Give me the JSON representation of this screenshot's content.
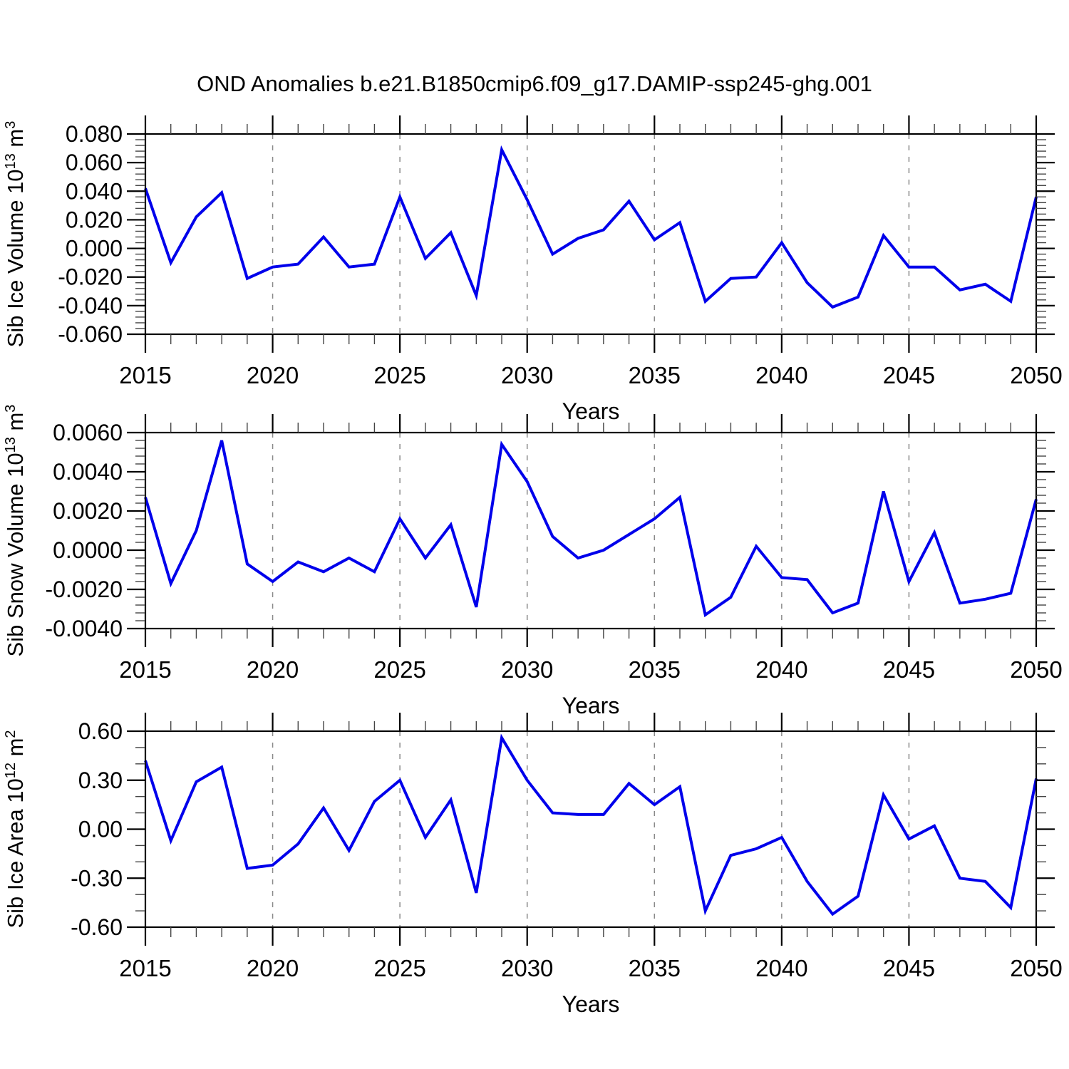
{
  "title": "OND Anomalies b.e21.B1850cmip6.f09_g17.DAMIP-ssp245-ghg.001",
  "colors": {
    "line": "#0000EB",
    "axis": "#000000",
    "grid": "#8a8a8a",
    "minor_tick": "#444444",
    "background": "#ffffff"
  },
  "x_axis": {
    "label": "Years",
    "years": [
      2015,
      2016,
      2017,
      2018,
      2019,
      2020,
      2021,
      2022,
      2023,
      2024,
      2025,
      2026,
      2027,
      2028,
      2029,
      2030,
      2031,
      2032,
      2033,
      2034,
      2035,
      2036,
      2037,
      2038,
      2039,
      2040,
      2041,
      2042,
      2043,
      2044,
      2045,
      2046,
      2047,
      2048,
      2049,
      2050
    ],
    "tick_years": [
      2015,
      2020,
      2025,
      2030,
      2035,
      2040,
      2045,
      2050
    ],
    "tick_labels": [
      "2015",
      "2020",
      "2025",
      "2030",
      "2035",
      "2040",
      "2045",
      "2050"
    ],
    "grid_years": [
      2020,
      2025,
      2030,
      2035,
      2040,
      2045
    ],
    "xlim": [
      2015,
      2050
    ]
  },
  "chart_data": [
    {
      "type": "line",
      "name": "sib-ice-volume",
      "ylabel_text": "Sib Ice Volume 10^13 m^3",
      "ylabel_parts": [
        {
          "text": "Sib Ice Volume 10"
        },
        {
          "text": "13",
          "sup": true
        },
        {
          "text": " m"
        },
        {
          "text": "3",
          "sup": true
        }
      ],
      "ytick_labels": [
        "0.080",
        "0.060",
        "0.040",
        "0.020",
        "0.000",
        "-0.020",
        "-0.040",
        "-0.060"
      ],
      "ytick_values": [
        0.08,
        0.06,
        0.04,
        0.02,
        0.0,
        -0.02,
        -0.04,
        -0.06
      ],
      "ylim": [
        -0.06,
        0.08
      ],
      "minor_step": 0.004,
      "grid": "vertical-dashed",
      "legend": "none",
      "values": [
        0.042,
        -0.01,
        0.022,
        0.039,
        -0.021,
        -0.013,
        -0.011,
        0.008,
        -0.013,
        -0.011,
        0.036,
        -0.007,
        0.011,
        -0.033,
        0.069,
        0.034,
        -0.004,
        0.007,
        0.013,
        0.033,
        0.006,
        0.018,
        -0.037,
        -0.021,
        -0.02,
        0.004,
        -0.024,
        -0.041,
        -0.034,
        0.009,
        -0.013,
        -0.013,
        -0.029,
        -0.025,
        -0.037,
        0.036
      ]
    },
    {
      "type": "line",
      "name": "sib-snow-volume",
      "ylabel_text": "Sib Snow Volume 10^13 m^3",
      "ylabel_parts": [
        {
          "text": "Sib Snow Volume 10"
        },
        {
          "text": "13",
          "sup": true
        },
        {
          "text": " m"
        },
        {
          "text": "3",
          "sup": true
        }
      ],
      "ytick_labels": [
        "0.0060",
        "0.0040",
        "0.0020",
        "0.0000",
        "-0.0020",
        "-0.0040"
      ],
      "ytick_values": [
        0.006,
        0.004,
        0.002,
        0.0,
        -0.002,
        -0.004
      ],
      "ylim": [
        -0.004,
        0.006
      ],
      "minor_step": 0.0004,
      "grid": "vertical-dashed",
      "legend": "none",
      "values": [
        0.0027,
        -0.0017,
        0.001,
        0.0056,
        -0.0007,
        -0.0016,
        -0.0006,
        -0.0011,
        -0.0004,
        -0.0011,
        0.0016,
        -0.0004,
        0.0013,
        -0.0029,
        0.0054,
        0.0035,
        0.0007,
        -0.0004,
        0.0,
        0.0008,
        0.0016,
        0.0027,
        -0.0033,
        -0.0024,
        0.0002,
        -0.0014,
        -0.0015,
        -0.0032,
        -0.0027,
        0.003,
        -0.0016,
        0.0009,
        -0.0027,
        -0.0025,
        -0.0022,
        0.0026
      ]
    },
    {
      "type": "line",
      "name": "sib-ice-area",
      "ylabel_text": "Sib Ice Area 10^12 m^2",
      "ylabel_parts": [
        {
          "text": "Sib Ice Area 10"
        },
        {
          "text": "12",
          "sup": true
        },
        {
          "text": " m"
        },
        {
          "text": "2",
          "sup": true
        }
      ],
      "ytick_labels": [
        "0.60",
        "0.30",
        "0.00",
        "-0.30",
        "-0.60"
      ],
      "ytick_values": [
        0.6,
        0.3,
        0.0,
        -0.3,
        -0.6
      ],
      "ylim": [
        -0.6,
        0.6
      ],
      "minor_step": 0.1,
      "grid": "vertical-dashed",
      "legend": "none",
      "values": [
        0.42,
        -0.07,
        0.29,
        0.38,
        -0.24,
        -0.22,
        -0.09,
        0.13,
        -0.13,
        0.17,
        0.3,
        -0.05,
        0.18,
        -0.39,
        0.56,
        0.3,
        0.1,
        0.09,
        0.09,
        0.28,
        0.15,
        0.26,
        -0.5,
        -0.16,
        -0.12,
        -0.05,
        -0.32,
        -0.52,
        -0.41,
        0.21,
        -0.06,
        0.02,
        -0.3,
        -0.32,
        -0.48,
        0.31
      ]
    }
  ]
}
